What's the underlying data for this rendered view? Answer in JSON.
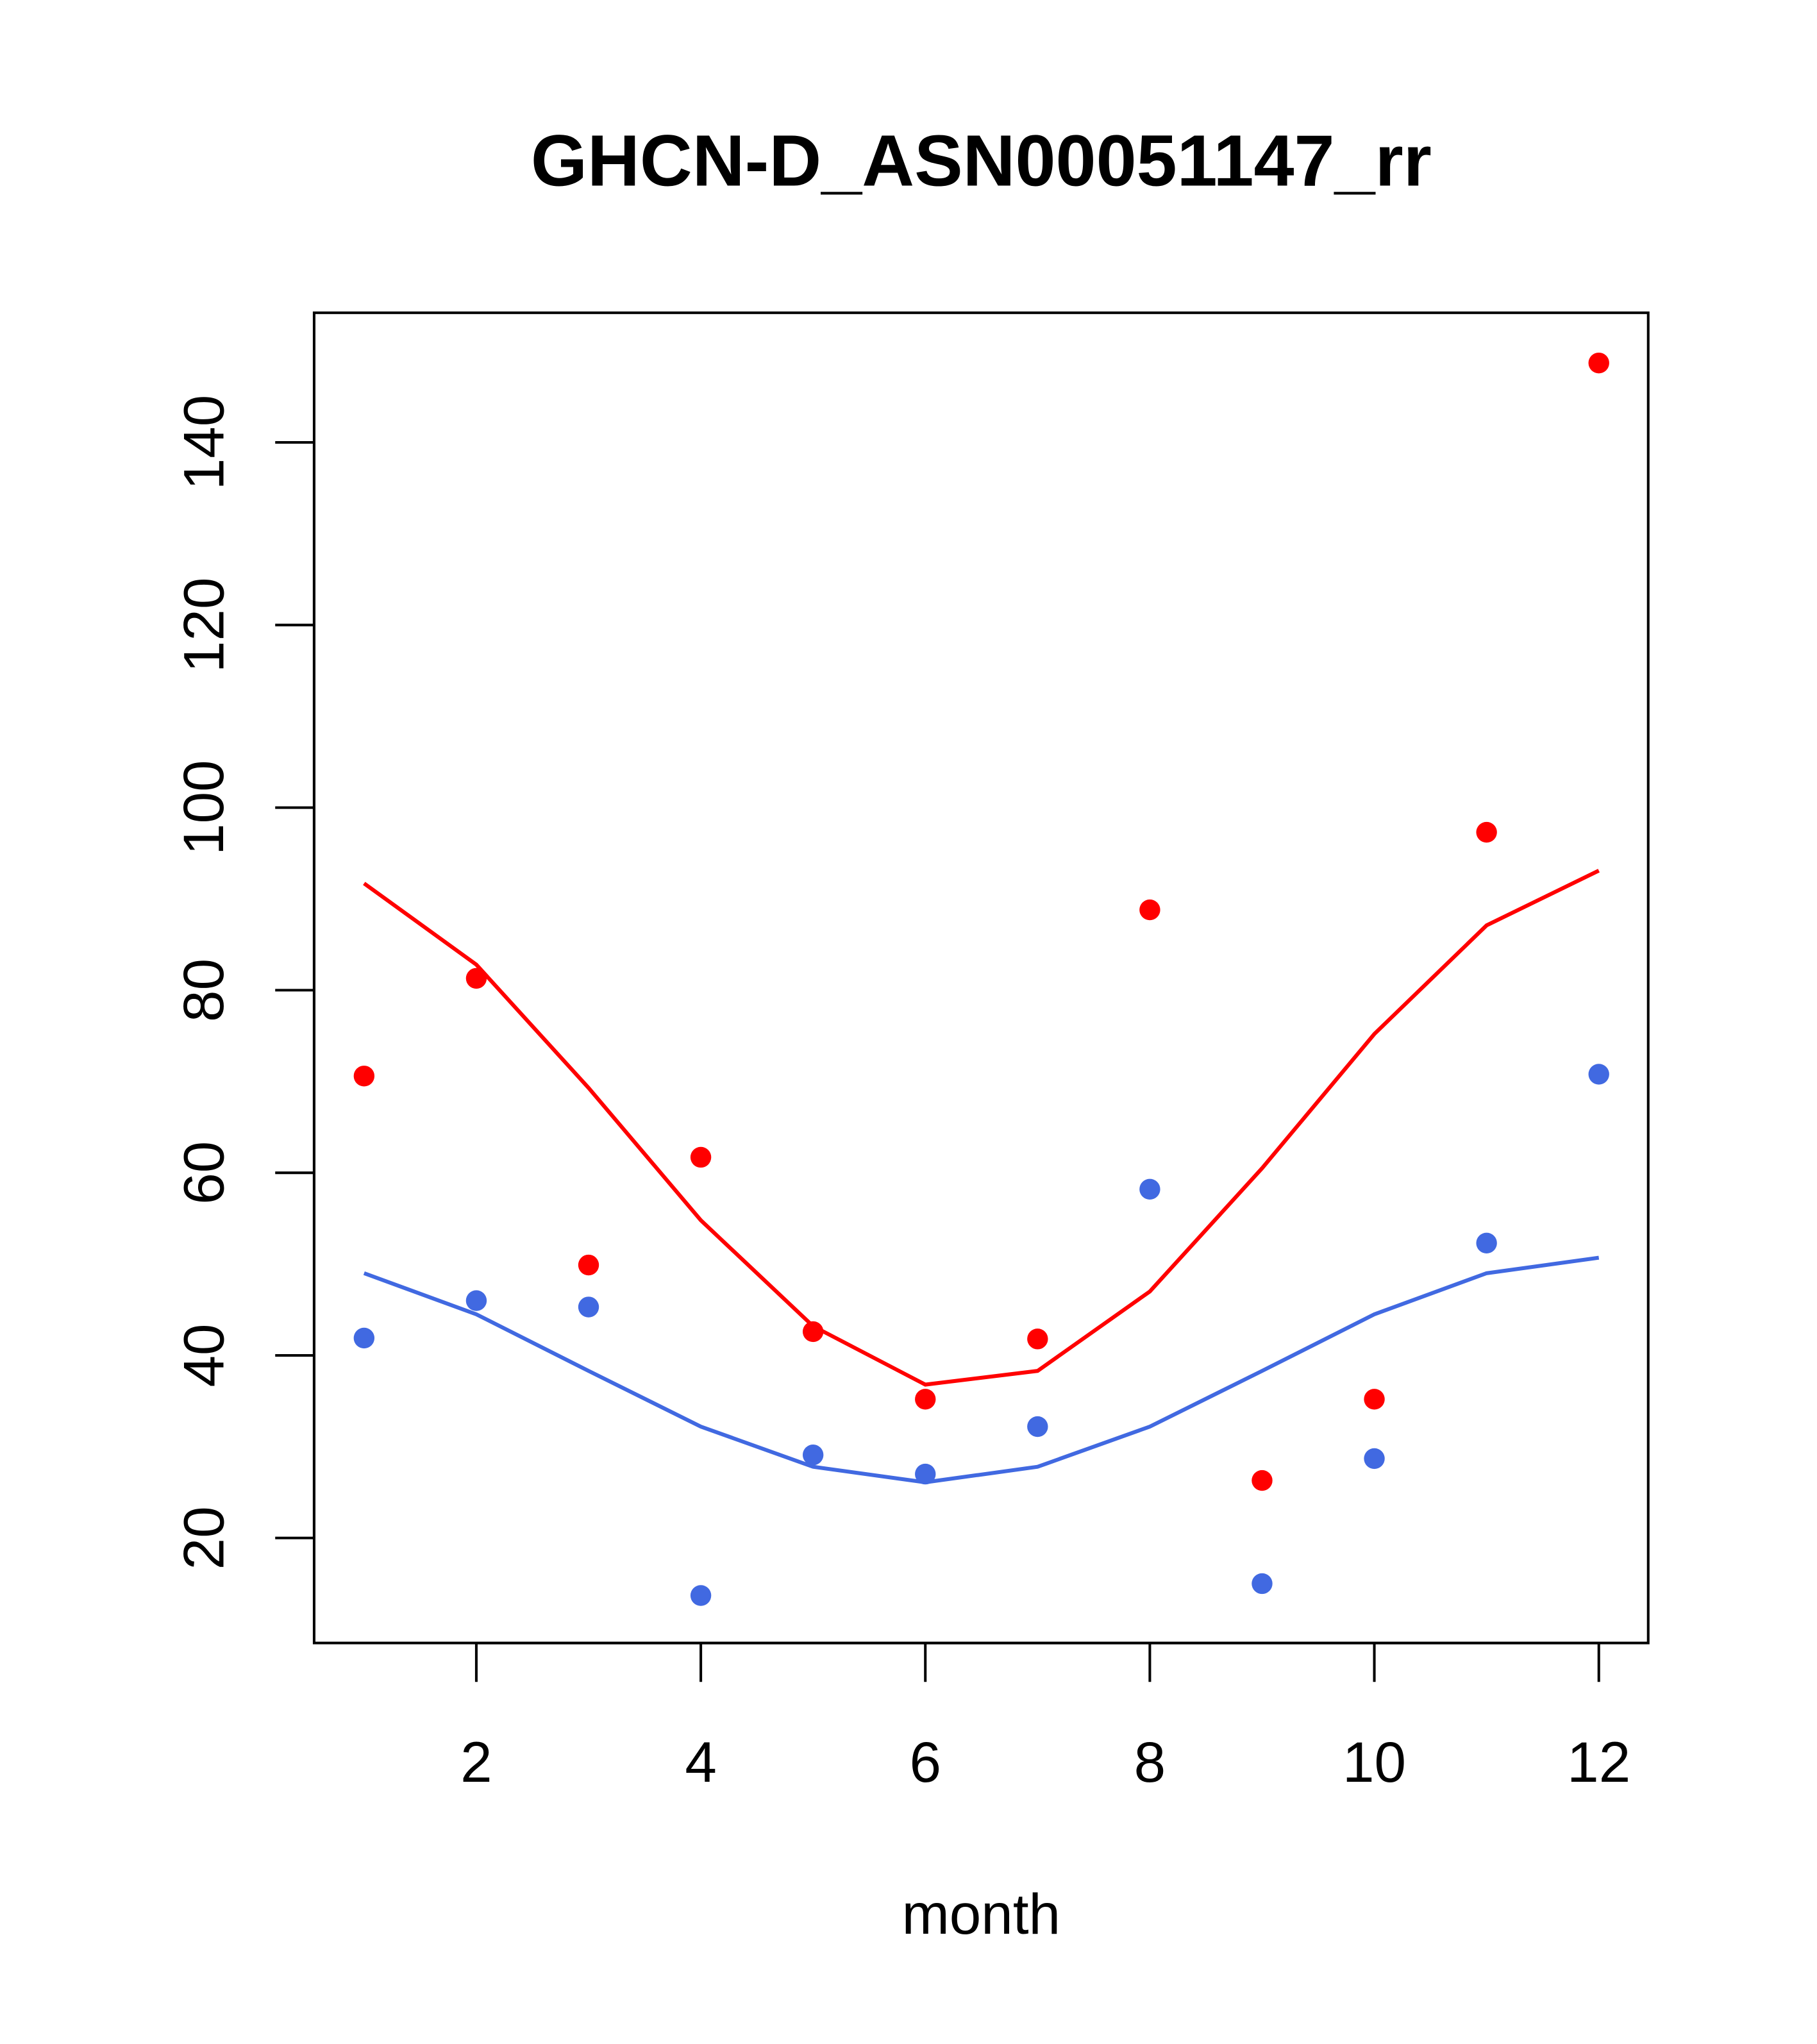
{
  "chart_data": {
    "type": "scatter",
    "title": "GHCN-D_ASN00051147_rr",
    "xlabel": "month",
    "ylabel": "",
    "xlim": [
      0.555,
      12.44
    ],
    "ylim": [
      8.5,
      154.2
    ],
    "x_ticks": [
      2,
      4,
      6,
      8,
      10,
      12
    ],
    "y_ticks": [
      20,
      40,
      60,
      80,
      100,
      120,
      140
    ],
    "x_tick_labels": [
      "2",
      "4",
      "6",
      "8",
      "10",
      "12"
    ],
    "y_tick_labels": [
      "20",
      "40",
      "60",
      "80",
      "100",
      "120",
      "140"
    ],
    "grid": false,
    "x": [
      1,
      2,
      3,
      4,
      5,
      6,
      7,
      8,
      9,
      10,
      11,
      12
    ],
    "series": [
      {
        "name": "red-points",
        "kind": "points",
        "color": "#ff0000",
        "values": [
          70.6,
          81.3,
          49.9,
          61.7,
          42.6,
          35.2,
          41.8,
          88.8,
          26.3,
          35.2,
          97.3,
          148.7
        ]
      },
      {
        "name": "blue-points",
        "kind": "points",
        "color": "#4169e1",
        "values": [
          41.9,
          46.0,
          45.3,
          13.7,
          29.1,
          27.0,
          32.2,
          58.2,
          15.0,
          28.7,
          52.3,
          70.8
        ]
      },
      {
        "name": "red-line",
        "kind": "line",
        "color": "#ff0000",
        "values": [
          91.7,
          82.8,
          69.3,
          54.8,
          43.2,
          36.8,
          38.3,
          47.0,
          60.5,
          75.2,
          87.1,
          93.1
        ]
      },
      {
        "name": "blue-line",
        "kind": "line",
        "color": "#4169e1",
        "values": [
          49.0,
          44.5,
          38.3,
          32.2,
          27.8,
          26.1,
          27.8,
          32.2,
          38.3,
          44.5,
          49.0,
          50.7
        ]
      }
    ]
  }
}
